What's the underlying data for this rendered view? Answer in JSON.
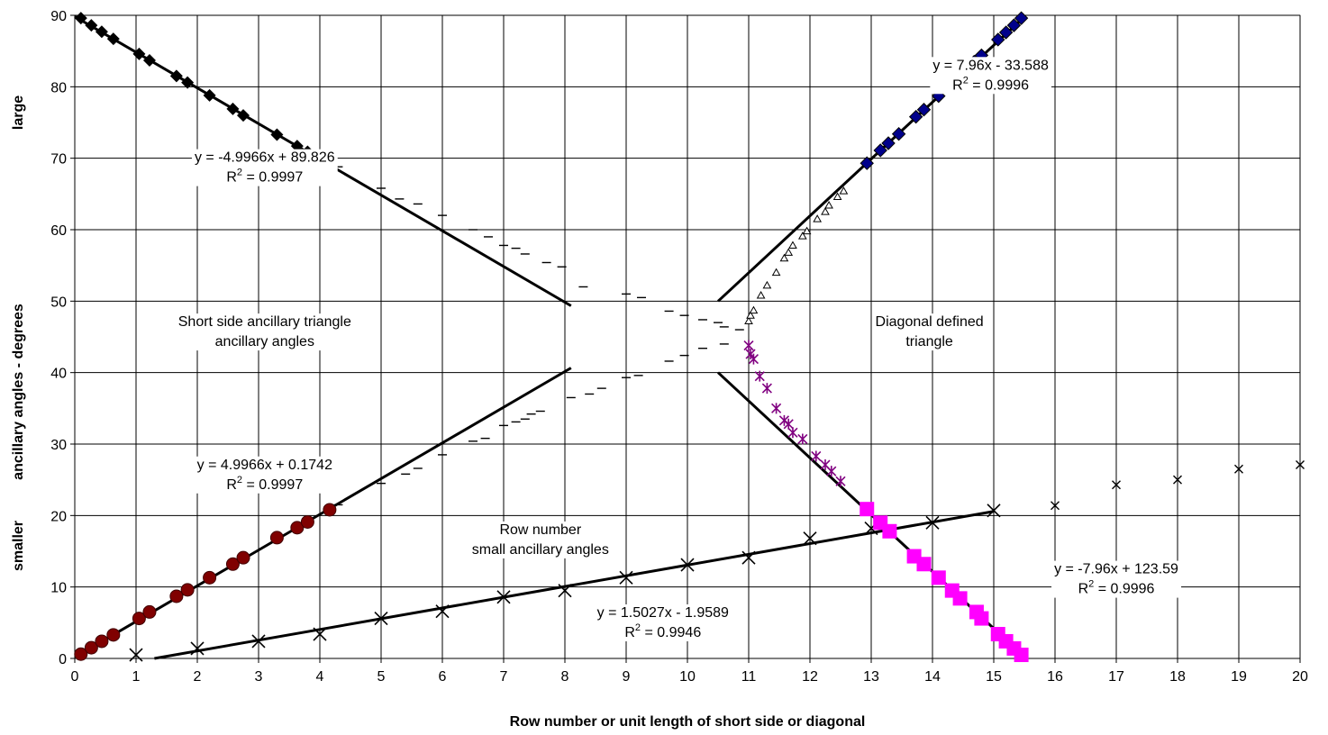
{
  "chart_data": {
    "type": "scatter",
    "title": "",
    "xlabel": "Row number or unit length of short side or diagonal",
    "ylabel": "ancillary angles - degrees",
    "ylabel_large": "large",
    "ylabel_small": "smaller",
    "xlim": [
      0,
      20
    ],
    "ylim": [
      0,
      90
    ],
    "x_ticks": [
      "0",
      "1",
      "2",
      "3",
      "4",
      "5",
      "6",
      "7",
      "8",
      "9",
      "10",
      "11",
      "12",
      "13",
      "14",
      "15",
      "16",
      "17",
      "18",
      "19",
      "20"
    ],
    "y_ticks": [
      "0",
      "10",
      "20",
      "30",
      "40",
      "50",
      "60",
      "70",
      "80",
      "90"
    ],
    "grid": true,
    "colors": {
      "diamond": "#000000",
      "circle": "#800000",
      "cross": "#000000",
      "blue_diamond": "#00008B",
      "triangle": "#000000",
      "purple_star": "#800080",
      "magenta_square": "#FF00FF",
      "dash": "#000000",
      "trendline": "#000000"
    },
    "series": [
      {
        "marker": "diamond",
        "points": [
          [
            0.1,
            89.6
          ],
          [
            0.27,
            88.6
          ],
          [
            0.44,
            87.7
          ],
          [
            0.63,
            86.7
          ],
          [
            1.05,
            84.6
          ],
          [
            1.22,
            83.7
          ],
          [
            1.66,
            81.5
          ],
          [
            1.84,
            80.6
          ],
          [
            2.2,
            78.8
          ],
          [
            2.58,
            76.9
          ],
          [
            2.75,
            76.0
          ],
          [
            3.3,
            73.3
          ],
          [
            3.63,
            71.7
          ],
          [
            3.8,
            70.9
          ],
          [
            4.16,
            69.2
          ]
        ]
      },
      {
        "marker": "circle",
        "points": [
          [
            0.1,
            0.6
          ],
          [
            0.27,
            1.5
          ],
          [
            0.44,
            2.4
          ],
          [
            0.63,
            3.3
          ],
          [
            1.05,
            5.6
          ],
          [
            1.22,
            6.5
          ],
          [
            1.66,
            8.7
          ],
          [
            1.84,
            9.6
          ],
          [
            2.2,
            11.3
          ],
          [
            2.58,
            13.2
          ],
          [
            2.75,
            14.1
          ],
          [
            3.3,
            16.9
          ],
          [
            3.63,
            18.3
          ],
          [
            3.8,
            19.1
          ],
          [
            4.16,
            20.8
          ]
        ]
      },
      {
        "marker": "cross",
        "points": [
          [
            1,
            0.5
          ],
          [
            2,
            1.4
          ],
          [
            3,
            2.4
          ],
          [
            4,
            3.4
          ],
          [
            5,
            5.6
          ],
          [
            6,
            6.6
          ],
          [
            7,
            8.6
          ],
          [
            8,
            9.5
          ],
          [
            9,
            11.3
          ],
          [
            10,
            13.1
          ],
          [
            11,
            14.1
          ],
          [
            12,
            16.8
          ],
          [
            13,
            18.2
          ],
          [
            14,
            19.0
          ],
          [
            15,
            20.7
          ]
        ]
      },
      {
        "marker": "small-x",
        "points": [
          [
            16,
            21.4
          ],
          [
            17,
            24.3
          ],
          [
            18,
            25.0
          ],
          [
            19,
            26.5
          ],
          [
            20,
            27.1
          ]
        ]
      },
      {
        "marker": "blue-diamond",
        "points": [
          [
            12.93,
            69.3
          ],
          [
            13.15,
            71.1
          ],
          [
            13.28,
            72.1
          ],
          [
            13.45,
            73.4
          ],
          [
            13.73,
            75.8
          ],
          [
            13.86,
            76.8
          ],
          [
            14.1,
            78.7
          ],
          [
            14.32,
            80.5
          ],
          [
            14.45,
            81.6
          ],
          [
            14.68,
            83.5
          ],
          [
            14.8,
            84.4
          ],
          [
            15.07,
            86.6
          ],
          [
            15.2,
            87.6
          ],
          [
            15.33,
            88.6
          ],
          [
            15.45,
            89.6
          ]
        ]
      },
      {
        "marker": "triangle",
        "points": [
          [
            11.0,
            47.2
          ],
          [
            11.03,
            48.0
          ],
          [
            11.08,
            48.7
          ],
          [
            11.2,
            50.8
          ],
          [
            11.3,
            52.2
          ],
          [
            11.45,
            54.0
          ],
          [
            11.58,
            56.0
          ],
          [
            11.65,
            56.8
          ],
          [
            11.72,
            57.8
          ],
          [
            11.88,
            59.1
          ],
          [
            11.95,
            59.8
          ],
          [
            12.12,
            61.5
          ],
          [
            12.25,
            62.5
          ],
          [
            12.31,
            63.4
          ],
          [
            12.45,
            64.6
          ],
          [
            12.55,
            65.4
          ]
        ]
      },
      {
        "marker": "purple-star",
        "points": [
          [
            11.0,
            43.8
          ],
          [
            11.03,
            42.6
          ],
          [
            11.08,
            41.9
          ],
          [
            11.18,
            39.5
          ],
          [
            11.3,
            37.8
          ],
          [
            11.45,
            35.0
          ],
          [
            11.58,
            33.3
          ],
          [
            11.65,
            32.8
          ],
          [
            11.72,
            31.6
          ],
          [
            11.88,
            30.7
          ],
          [
            12.1,
            28.3
          ],
          [
            12.25,
            27.1
          ],
          [
            12.35,
            26.2
          ],
          [
            12.5,
            24.8
          ]
        ]
      },
      {
        "marker": "magenta-square",
        "points": [
          [
            12.93,
            20.9
          ],
          [
            13.15,
            19.0
          ],
          [
            13.3,
            17.8
          ],
          [
            13.7,
            14.3
          ],
          [
            13.86,
            13.2
          ],
          [
            14.1,
            11.3
          ],
          [
            14.32,
            9.5
          ],
          [
            14.45,
            8.4
          ],
          [
            14.72,
            6.5
          ],
          [
            14.8,
            5.6
          ],
          [
            15.07,
            3.4
          ],
          [
            15.2,
            2.4
          ],
          [
            15.33,
            1.4
          ],
          [
            15.45,
            0.5
          ]
        ]
      },
      {
        "marker": "dash",
        "points": [
          [
            4.3,
            68.8
          ],
          [
            5.0,
            65.8
          ],
          [
            5.3,
            64.3
          ],
          [
            5.6,
            63.6
          ],
          [
            6.0,
            62.0
          ],
          [
            6.5,
            60.0
          ],
          [
            6.75,
            59.0
          ],
          [
            7.0,
            57.8
          ],
          [
            7.2,
            57.4
          ],
          [
            7.35,
            56.6
          ],
          [
            7.7,
            55.4
          ],
          [
            7.95,
            54.8
          ],
          [
            8.3,
            52.0
          ],
          [
            9.0,
            51.0
          ],
          [
            9.25,
            50.5
          ],
          [
            9.7,
            48.6
          ],
          [
            9.95,
            48.0
          ],
          [
            10.25,
            47.4
          ],
          [
            10.5,
            47.0
          ],
          [
            10.6,
            46.4
          ],
          [
            10.85,
            46.0
          ],
          [
            4.3,
            21.5
          ],
          [
            5.0,
            24.5
          ],
          [
            5.4,
            25.8
          ],
          [
            5.6,
            26.6
          ],
          [
            6.0,
            28.5
          ],
          [
            6.5,
            30.4
          ],
          [
            6.7,
            30.8
          ],
          [
            7.0,
            32.6
          ],
          [
            7.2,
            33.1
          ],
          [
            7.35,
            33.5
          ],
          [
            7.45,
            34.2
          ],
          [
            7.6,
            34.6
          ],
          [
            8.1,
            36.5
          ],
          [
            8.4,
            37.0
          ],
          [
            8.6,
            37.8
          ],
          [
            9.0,
            39.3
          ],
          [
            9.2,
            39.6
          ],
          [
            9.7,
            41.6
          ],
          [
            9.95,
            42.4
          ],
          [
            10.25,
            43.4
          ],
          [
            10.6,
            44.0
          ]
        ]
      }
    ],
    "trendlines": [
      {
        "x": [
          0,
          8.1
        ],
        "y": [
          89.826,
          49.35
        ]
      },
      {
        "x": [
          0,
          8.1
        ],
        "y": [
          0.1742,
          40.65
        ]
      },
      {
        "x": [
          1.3,
          15
        ],
        "y": [
          0,
          20.58
        ]
      },
      {
        "x": [
          10.5,
          15.5
        ],
        "y": [
          49.99,
          89.79
        ]
      },
      {
        "x": [
          10.5,
          15.5
        ],
        "y": [
          40.01,
          0.21
        ]
      }
    ],
    "annotations": [
      {
        "id": "eq1",
        "lines": [
          "y = -4.9966x + 89.826",
          "R2 = 0.9997"
        ],
        "x": 3.1,
        "y": 69.5
      },
      {
        "id": "eq2",
        "lines": [
          "y = 4.9966x + 0.1742",
          "R2 = 0.9997"
        ],
        "x": 3.1,
        "y": 26.5
      },
      {
        "id": "eq3",
        "lines": [
          "y = 1.5027x - 1.9589",
          "R2 = 0.9946"
        ],
        "x": 9.6,
        "y": 5.8
      },
      {
        "id": "eq4",
        "lines": [
          "y = 7.96x - 33.588",
          "R2 = 0.9996"
        ],
        "x": 14.95,
        "y": 82.4
      },
      {
        "id": "eq5",
        "lines": [
          "y = -7.96x + 123.59",
          "R2 = 0.9996"
        ],
        "x": 17.0,
        "y": 11.9
      },
      {
        "id": "lbl1",
        "lines": [
          "Short side ancillary triangle",
          "ancillary angles"
        ],
        "x": 3.1,
        "y": 46.5
      },
      {
        "id": "lbl2",
        "lines": [
          "Row number",
          "small ancillary angles"
        ],
        "x": 7.6,
        "y": 17.4
      },
      {
        "id": "lbl3",
        "lines": [
          "Diagonal defined",
          "triangle"
        ],
        "x": 13.95,
        "y": 46.5
      }
    ]
  }
}
